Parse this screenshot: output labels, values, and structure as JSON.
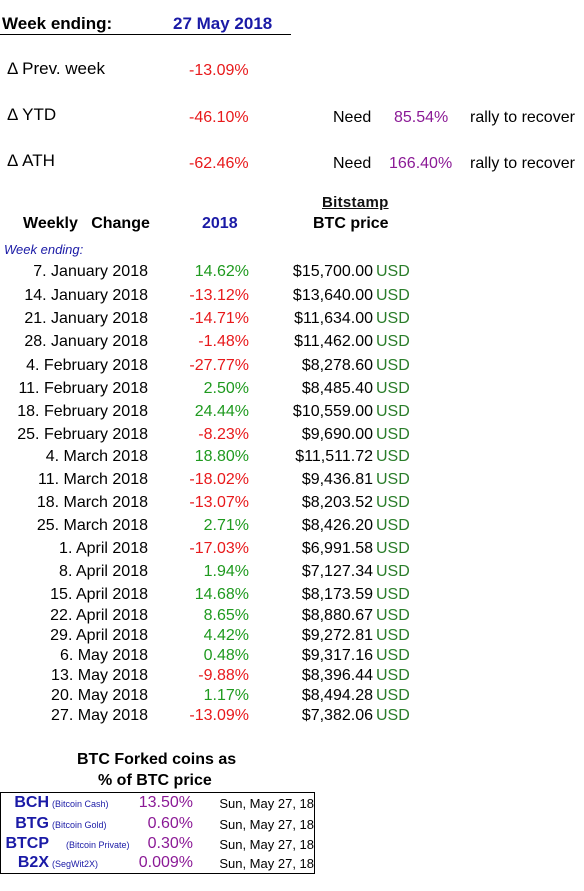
{
  "header": {
    "label": "Week ending:",
    "date": "27 May 2018"
  },
  "summary": [
    {
      "label": "Δ Prev. week",
      "value": "-13.09%"
    },
    {
      "label": "Δ YTD",
      "value": "-46.10%",
      "need_label": "Need",
      "need_value": "85.54%",
      "suffix": "rally to recover"
    },
    {
      "label": "Δ ATH",
      "value": "-62.46%",
      "need_label": "Need",
      "need_value": "166.40%",
      "suffix": "rally to recover"
    }
  ],
  "table": {
    "title": "Weekly   Change",
    "year": "2018",
    "source": "Bitstamp",
    "price_header": "BTC price",
    "subheader": "Week ending:",
    "rows": [
      {
        "date": "7. January 2018",
        "change": "14.62%",
        "dir": "up",
        "price": "$15,700.00",
        "cur": "USD"
      },
      {
        "date": "14. January 2018",
        "change": "-13.12%",
        "dir": "down",
        "price": "$13,640.00",
        "cur": "USD"
      },
      {
        "date": "21. January 2018",
        "change": "-14.71%",
        "dir": "down",
        "price": "$11,634.00",
        "cur": "USD"
      },
      {
        "date": "28. January 2018",
        "change": "-1.48%",
        "dir": "down",
        "price": "$11,462.00",
        "cur": "USD"
      },
      {
        "date": "4. February 2018",
        "change": "-27.77%",
        "dir": "down",
        "price": "$8,278.60",
        "cur": "USD"
      },
      {
        "date": "11. February 2018",
        "change": "2.50%",
        "dir": "up",
        "price": "$8,485.40",
        "cur": "USD"
      },
      {
        "date": "18. February 2018",
        "change": "24.44%",
        "dir": "up",
        "price": "$10,559.00",
        "cur": "USD"
      },
      {
        "date": "25. February 2018",
        "change": "-8.23%",
        "dir": "down",
        "price": "$9,690.00",
        "cur": "USD"
      },
      {
        "date": "4. March 2018",
        "change": "18.80%",
        "dir": "up",
        "price": "$11,511.72",
        "cur": "USD"
      },
      {
        "date": "11. March 2018",
        "change": "-18.02%",
        "dir": "down",
        "price": "$9,436.81",
        "cur": "USD"
      },
      {
        "date": "18. March 2018",
        "change": "-13.07%",
        "dir": "down",
        "price": "$8,203.52",
        "cur": "USD"
      },
      {
        "date": "25. March 2018",
        "change": "2.71%",
        "dir": "up",
        "price": "$8,426.20",
        "cur": "USD"
      },
      {
        "date": "1. April 2018",
        "change": "-17.03%",
        "dir": "down",
        "price": "$6,991.58",
        "cur": "USD"
      },
      {
        "date": "8. April 2018",
        "change": "1.94%",
        "dir": "up",
        "price": "$7,127.34",
        "cur": "USD"
      },
      {
        "date": "15. April 2018",
        "change": "14.68%",
        "dir": "up",
        "price": "$8,173.59",
        "cur": "USD"
      },
      {
        "date": "22. April 2018",
        "change": "8.65%",
        "dir": "up",
        "price": "$8,880.67",
        "cur": "USD"
      },
      {
        "date": "29. April 2018",
        "change": "4.42%",
        "dir": "up",
        "price": "$9,272.81",
        "cur": "USD"
      },
      {
        "date": "6. May 2018",
        "change": "0.48%",
        "dir": "up",
        "price": "$9,317.16",
        "cur": "USD"
      },
      {
        "date": "13. May 2018",
        "change": "-9.88%",
        "dir": "down",
        "price": "$8,396.44",
        "cur": "USD"
      },
      {
        "date": "20. May 2018",
        "change": "1.17%",
        "dir": "up",
        "price": "$8,494.28",
        "cur": "USD"
      },
      {
        "date": "27. May 2018",
        "change": "-13.09%",
        "dir": "down",
        "price": "$7,382.06",
        "cur": "USD"
      }
    ]
  },
  "forked": {
    "title_line1": "BTC Forked coins as",
    "title_line2": "% of BTC price",
    "rows": [
      {
        "symbol": "BCH",
        "name": "(Bitcoin Cash)",
        "pct": "13.50%",
        "date": "Sun, May 27, 18"
      },
      {
        "symbol": "BTG",
        "name": "(Bitcoin Gold)",
        "pct": "0.60%",
        "date": "Sun, May 27, 18"
      },
      {
        "symbol": "BTCP",
        "name": "(Bitcoin Private)",
        "pct": "0.30%",
        "date": "Sun, May 27, 18"
      },
      {
        "symbol": "B2X",
        "name": "(SegWit2X)",
        "pct": "0.009%",
        "date": "Sun, May 27, 18"
      }
    ]
  }
}
